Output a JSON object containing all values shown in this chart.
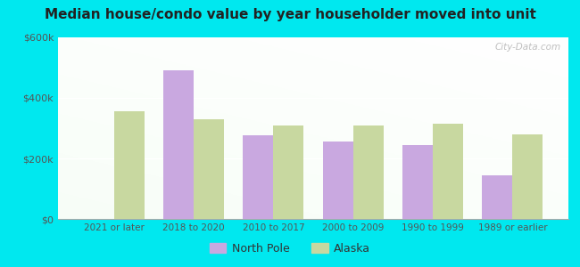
{
  "title": "Median house/condo value by year householder moved into unit",
  "categories": [
    "2021 or later",
    "2018 to 2020",
    "2010 to 2017",
    "2000 to 2009",
    "1990 to 1999",
    "1989 or earlier"
  ],
  "north_pole": [
    null,
    490000,
    275000,
    255000,
    245000,
    145000
  ],
  "alaska": [
    355000,
    330000,
    310000,
    310000,
    315000,
    280000
  ],
  "north_pole_color": "#c9a8e0",
  "alaska_color": "#c8d8a0",
  "background_outer": "#00e8ef",
  "ylim": [
    0,
    600000
  ],
  "yticks": [
    0,
    200000,
    400000,
    600000
  ],
  "ytick_labels": [
    "$0",
    "$200k",
    "$400k",
    "$600k"
  ],
  "bar_width": 0.38,
  "legend_labels": [
    "North Pole",
    "Alaska"
  ],
  "watermark": "City-Data.com"
}
